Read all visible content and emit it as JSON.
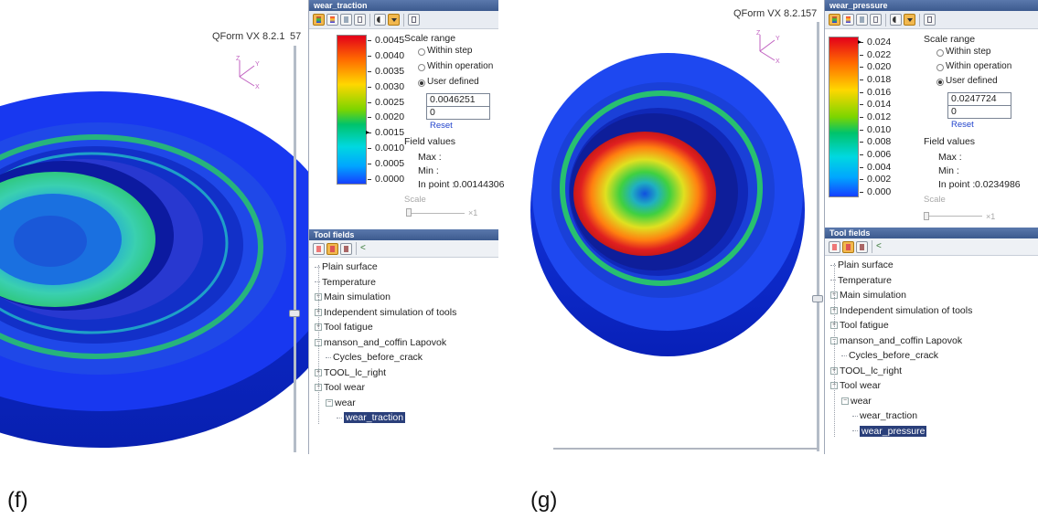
{
  "panels": [
    {
      "id": "f",
      "app_title": "QForm VX 8.2.1",
      "frame_number": "57",
      "field_title": "wear_traction",
      "colorbar_ticks": [
        "0.0045",
        "0.0040",
        "0.0035",
        "0.0030",
        "0.0025",
        "0.0020",
        "0.0015",
        "0.0010",
        "0.0005",
        "0.0000"
      ],
      "current_tick_index": 6,
      "scale_range": {
        "label": "Scale range",
        "options": [
          "Within step",
          "Within operation",
          "User defined"
        ],
        "selected": "User defined",
        "max_value": "0.0046251",
        "min_value": "0",
        "reset_label": "Reset"
      },
      "field_values": {
        "label": "Field values",
        "max_label": "Max :",
        "min_label": "Min :",
        "in_point_label": "In point :",
        "in_point_value": "0.00144306"
      },
      "scale": {
        "label": "Scale",
        "multiplier": "×1"
      },
      "tool_fields": {
        "title": "Tool fields",
        "items": [
          {
            "label": "Plain surface",
            "level": 0,
            "expander": "",
            "selected": false
          },
          {
            "label": "Temperature",
            "level": 0,
            "expander": "",
            "selected": false
          },
          {
            "label": "Main simulation",
            "level": 0,
            "expander": "+",
            "selected": false
          },
          {
            "label": "Independent simulation of tools",
            "level": 0,
            "expander": "+",
            "selected": false
          },
          {
            "label": "Tool fatigue",
            "level": 0,
            "expander": "+",
            "selected": false
          },
          {
            "label": "manson_and_coffin Lapovok",
            "level": 0,
            "expander": "−",
            "selected": false
          },
          {
            "label": "Cycles_before_crack",
            "level": 1,
            "expander": "",
            "selected": false
          },
          {
            "label": "TOOL_lc_right",
            "level": 0,
            "expander": "+",
            "selected": false
          },
          {
            "label": "Tool wear",
            "level": 0,
            "expander": "−",
            "selected": false
          },
          {
            "label": "wear",
            "level": 1,
            "expander": "−",
            "selected": false
          },
          {
            "label": "wear_traction",
            "level": 2,
            "expander": "",
            "selected": true
          }
        ]
      },
      "caption": "(f)"
    },
    {
      "id": "g",
      "app_title": "QForm VX 8.2.1",
      "frame_number": "57",
      "field_title": "wear_pressure",
      "colorbar_ticks": [
        "0.024",
        "0.022",
        "0.020",
        "0.018",
        "0.016",
        "0.014",
        "0.012",
        "0.010",
        "0.008",
        "0.006",
        "0.004",
        "0.002",
        "0.000"
      ],
      "current_tick_index": 0,
      "scale_range": {
        "label": "Scale range",
        "options": [
          "Within step",
          "Within operation",
          "User defined"
        ],
        "selected": "User defined",
        "max_value": "0.0247724",
        "min_value": "0",
        "reset_label": "Reset"
      },
      "field_values": {
        "label": "Field values",
        "max_label": "Max :",
        "min_label": "Min :",
        "in_point_label": "In point :",
        "in_point_value": "0.0234986"
      },
      "scale": {
        "label": "Scale",
        "multiplier": "×1"
      },
      "tool_fields": {
        "title": "Tool fields",
        "items": [
          {
            "label": "Plain surface",
            "level": 0,
            "expander": "",
            "selected": false
          },
          {
            "label": "Temperature",
            "level": 0,
            "expander": "",
            "selected": false
          },
          {
            "label": "Main simulation",
            "level": 0,
            "expander": "+",
            "selected": false
          },
          {
            "label": "Independent simulation of tools",
            "level": 0,
            "expander": "+",
            "selected": false
          },
          {
            "label": "Tool fatigue",
            "level": 0,
            "expander": "+",
            "selected": false
          },
          {
            "label": "manson_and_coffin Lapovok",
            "level": 0,
            "expander": "−",
            "selected": false
          },
          {
            "label": "Cycles_before_crack",
            "level": 1,
            "expander": "",
            "selected": false
          },
          {
            "label": "TOOL_lc_right",
            "level": 0,
            "expander": "+",
            "selected": false
          },
          {
            "label": "Tool wear",
            "level": 0,
            "expander": "−",
            "selected": false
          },
          {
            "label": "wear",
            "level": 1,
            "expander": "−",
            "selected": false
          },
          {
            "label": "wear_traction",
            "level": 2,
            "expander": "",
            "selected": false
          },
          {
            "label": "wear_pressure",
            "level": 2,
            "expander": "",
            "selected": true
          }
        ]
      },
      "caption": "(g)"
    }
  ],
  "icons": {
    "axis_gizmo": "xyz-axis-icon",
    "toolbar": [
      "color-map-icon",
      "isolines-icon",
      "legend-icon",
      "grid-icon",
      "contrast-icon",
      "dropdown-icon",
      "panel-icon"
    ],
    "tool_fields_toolbar": [
      "tool-display-icon",
      "tool-field-icon",
      "tool-mesh-icon",
      "tree-link-icon"
    ]
  },
  "colors": {
    "title_bar": "#3c5a8e",
    "toolbar_active": "#f2b84e",
    "selected_item": "#2a3f7a",
    "reset_link": "#2244cc"
  }
}
